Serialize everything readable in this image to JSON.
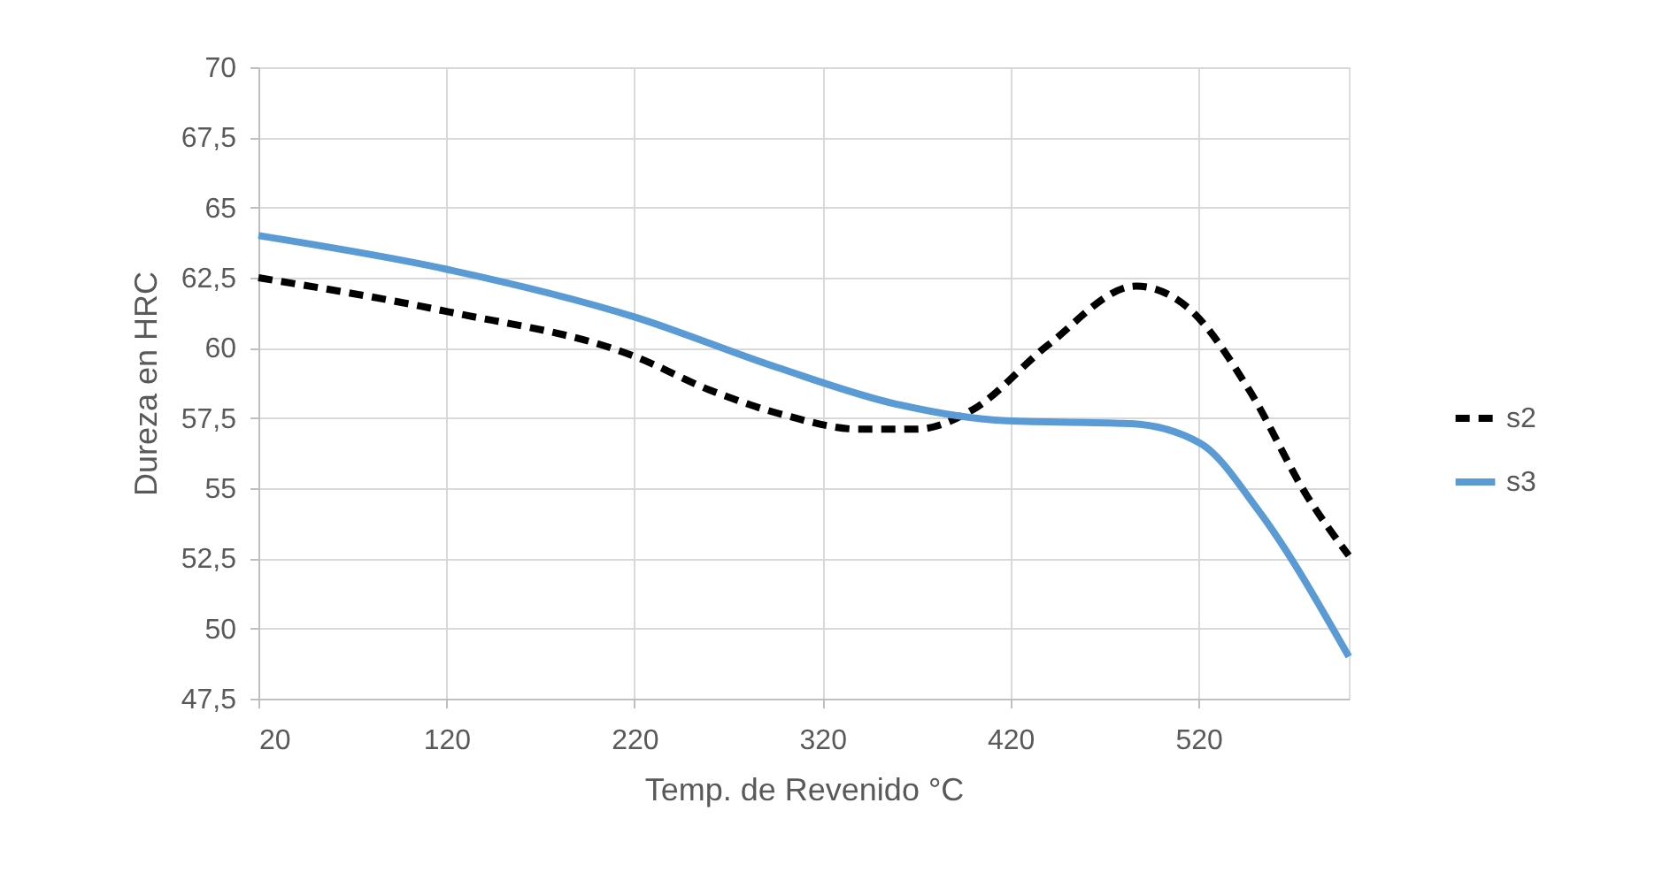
{
  "chart_data": {
    "type": "line",
    "xlabel": "Temp. de Revenido °C",
    "ylabel": "Dureza en HRC",
    "xlim": [
      20,
      600
    ],
    "xticks": [
      20,
      120,
      220,
      320,
      420,
      520
    ],
    "ylim": [
      47.5,
      70
    ],
    "yticks": [
      {
        "value": 47.5,
        "label": "47,5"
      },
      50,
      {
        "value": 52.5,
        "label": "52,5"
      },
      55,
      {
        "value": 57.5,
        "label": "57,5"
      },
      60,
      {
        "value": 62.5,
        "label": "62,5"
      },
      65,
      {
        "value": 67.5,
        "label": "67,5"
      },
      70
    ],
    "series": [
      {
        "name": "s2",
        "color": "#000000",
        "line_style": "dashed",
        "x": [
          20,
          120,
          220,
          260,
          300,
          340,
          370,
          400,
          440,
          487,
          515,
          547,
          578,
          600
        ],
        "values": [
          62.5,
          61.3,
          59.7,
          58.5,
          57.6,
          57.1,
          57.1,
          57.8,
          60.1,
          62.2,
          61.4,
          58.5,
          54.7,
          52.6
        ]
      },
      {
        "name": "s3",
        "color": "#5b9bd5",
        "line_style": "solid",
        "x": [
          20,
          120,
          220,
          296,
          359,
          418,
          484,
          521,
          552,
          600
        ],
        "values": [
          64,
          62.8,
          61.1,
          59.3,
          58.0,
          57.4,
          57.3,
          56.6,
          54.2,
          49
        ]
      }
    ],
    "grid": true,
    "legend": "right"
  }
}
